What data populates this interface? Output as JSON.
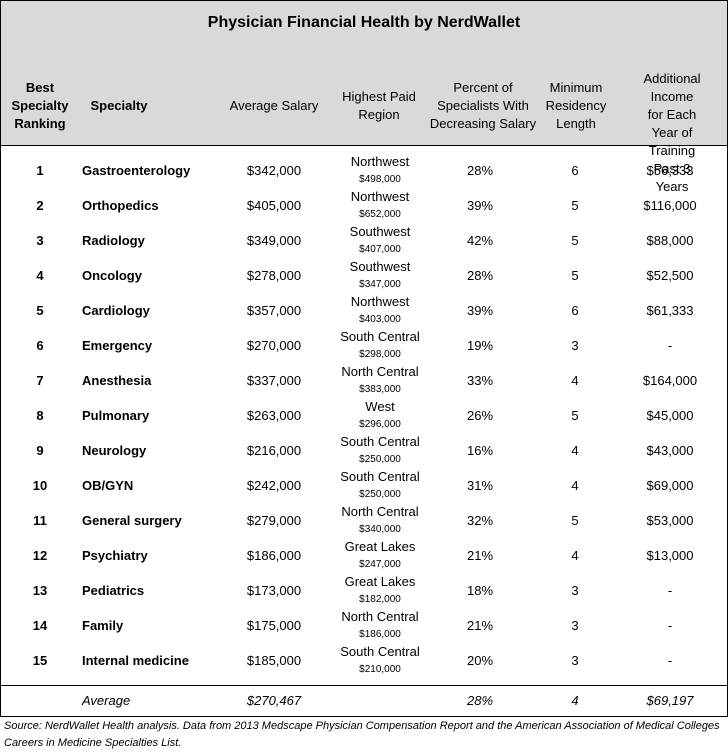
{
  "title": "Physician Financial Health by NerdWallet",
  "headers": [
    "Best\nSpecialty\nRanking",
    "Specialty",
    "Average Salary",
    "Highest Paid\nRegion",
    "Percent of\nSpecialists With\nDecreasing  Salary",
    "Minimum\nResidency\nLength",
    "Additional\nIncome for Each\nYear of Training\nPast 3 Years"
  ],
  "rows": [
    [
      "1",
      "Gastroenterology",
      "$342,000",
      "Northwest",
      "$498,000",
      "28%",
      "6",
      "$56,333"
    ],
    [
      "2",
      "Orthopedics",
      "$405,000",
      "Northwest",
      "$652,000",
      "39%",
      "5",
      "$116,000"
    ],
    [
      "3",
      "Radiology",
      "$349,000",
      "Southwest",
      "$407,000",
      "42%",
      "5",
      "$88,000"
    ],
    [
      "4",
      "Oncology",
      "$278,000",
      "Southwest",
      "$347,000",
      "28%",
      "5",
      "$52,500"
    ],
    [
      "5",
      "Cardiology",
      "$357,000",
      "Northwest",
      "$403,000",
      "39%",
      "6",
      "$61,333"
    ],
    [
      "6",
      "Emergency",
      "$270,000",
      "South Central",
      "$298,000",
      "19%",
      "3",
      "-"
    ],
    [
      "7",
      "Anesthesia",
      "$337,000",
      "North Central",
      "$383,000",
      "33%",
      "4",
      "$164,000"
    ],
    [
      "8",
      "Pulmonary",
      "$263,000",
      "West",
      "$296,000",
      "26%",
      "5",
      "$45,000"
    ],
    [
      "9",
      "Neurology",
      "$216,000",
      "South Central",
      "$250,000",
      "16%",
      "4",
      "$43,000"
    ],
    [
      "10",
      "OB/GYN",
      "$242,000",
      "South Central",
      "$250,000",
      "31%",
      "4",
      "$69,000"
    ],
    [
      "11",
      "General surgery",
      "$279,000",
      "North Central",
      "$340,000",
      "32%",
      "5",
      "$53,000"
    ],
    [
      "12",
      "Psychiatry",
      "$186,000",
      "Great Lakes",
      "$247,000",
      "21%",
      "4",
      "$13,000"
    ],
    [
      "13",
      "Pediatrics",
      "$173,000",
      "Great Lakes",
      "$182,000",
      "18%",
      "3",
      "-"
    ],
    [
      "14",
      "Family",
      "$175,000",
      "North Central",
      "$186,000",
      "21%",
      "3",
      "-"
    ],
    [
      "15",
      "Internal medicine",
      "$185,000",
      "South Central",
      "$210,000",
      "20%",
      "3",
      "-"
    ]
  ],
  "average": {
    "label": "Average",
    "salary": "$270,467",
    "percent": "28%",
    "residency": "4",
    "income": "$69,197"
  },
  "source": [
    "Source: NerdWallet Health analysis. Data from 2013 Medscape Physician Compensation Report and the American Association of Medical Colleges",
    "Careers in Medicine Specialties List."
  ]
}
